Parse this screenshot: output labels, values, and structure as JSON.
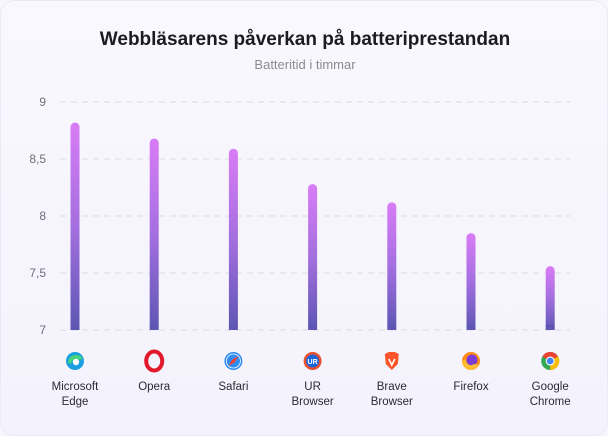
{
  "chart_data": {
    "type": "bar",
    "title": "Webbläsarens påverkan på batteriprestandan",
    "subtitle": "Batteritid i timmar",
    "xlabel": "",
    "ylabel": "",
    "ylim": [
      7,
      9
    ],
    "yticks": [
      {
        "value": 9,
        "label": "9"
      },
      {
        "value": 8.5,
        "label": "8,5"
      },
      {
        "value": 8,
        "label": "8"
      },
      {
        "value": 7.5,
        "label": "7,5"
      },
      {
        "value": 7,
        "label": "7"
      }
    ],
    "grid": true,
    "categories": [
      {
        "lines": [
          "Microsoft",
          "Edge"
        ],
        "icon": "edge-icon",
        "value": 8.82
      },
      {
        "lines": [
          "Opera"
        ],
        "icon": "opera-icon",
        "value": 8.68
      },
      {
        "lines": [
          "Safari"
        ],
        "icon": "safari-icon",
        "value": 8.59
      },
      {
        "lines": [
          "UR",
          "Browser"
        ],
        "icon": "ur-browser-icon",
        "value": 8.28
      },
      {
        "lines": [
          "Brave",
          "Browser"
        ],
        "icon": "brave-icon",
        "value": 8.12
      },
      {
        "lines": [
          "Firefox"
        ],
        "icon": "firefox-icon",
        "value": 7.85
      },
      {
        "lines": [
          "Google",
          "Chrome"
        ],
        "icon": "chrome-icon",
        "value": 7.56
      }
    ],
    "colors": {
      "bar_top": "#d97cf6",
      "bar_bottom": "#5d56b3",
      "grid": "#dcdbe4"
    }
  }
}
